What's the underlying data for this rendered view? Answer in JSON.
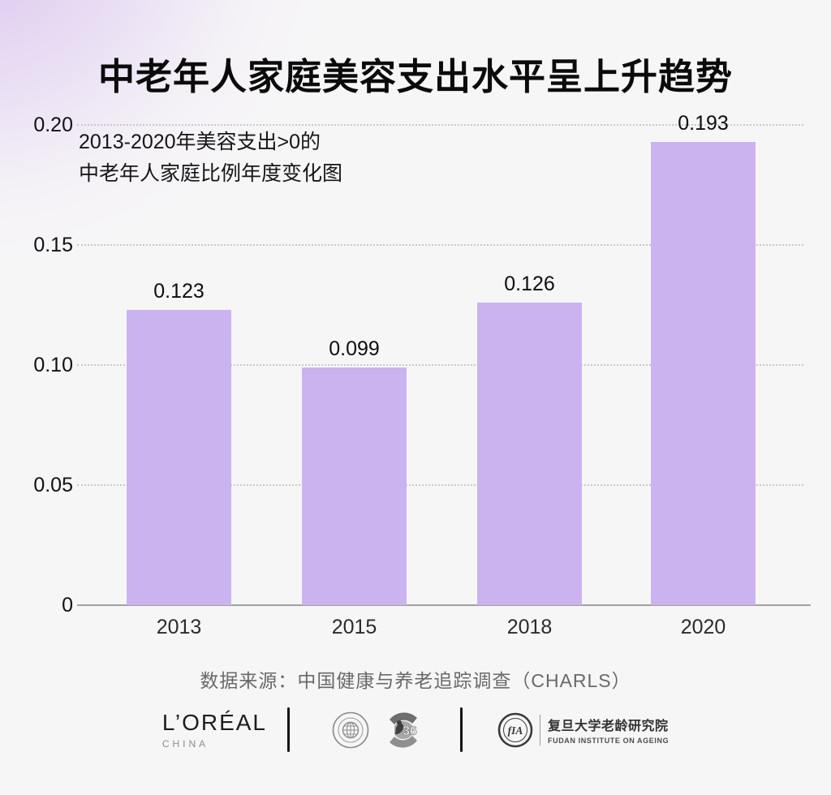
{
  "page": {
    "title": "中老年人家庭美容支出水平呈上升趋势",
    "background_base": "#f7f6f7",
    "background_accent": "#d5bcee"
  },
  "chart_data": {
    "type": "bar",
    "title": "中老年人家庭美容支出水平呈上升趋势",
    "subtitle_lines": [
      "2013-2020年美容支出>0的",
      "中老年人家庭比例年度变化图"
    ],
    "categories": [
      "2013",
      "2015",
      "2018",
      "2020"
    ],
    "values": [
      0.123,
      0.099,
      0.126,
      0.193
    ],
    "value_labels": [
      "0.123",
      "0.099",
      "0.126",
      "0.193"
    ],
    "y_ticks": [
      "0",
      "0.05",
      "0.10",
      "0.15",
      "0.20"
    ],
    "y_tick_values": [
      0,
      0.05,
      0.1,
      0.15,
      0.2
    ],
    "ylim": [
      0,
      0.2
    ],
    "xlabel": "",
    "ylabel": "",
    "bar_color": "#cbb3f0",
    "grid": "horizontal dotted",
    "legend": "none"
  },
  "source": {
    "text": "数据来源：中国健康与养老追踪调查（CHARLS）"
  },
  "footer": {
    "loreal_wordmark": "L’ORÉAL",
    "loreal_region": "CHINA",
    "council_logo_number": "36",
    "fia_monogram": "fIA",
    "fudan_cn": "复旦大学老龄研究院",
    "fudan_en": "FUDAN INSTITUTE ON AGEING"
  }
}
